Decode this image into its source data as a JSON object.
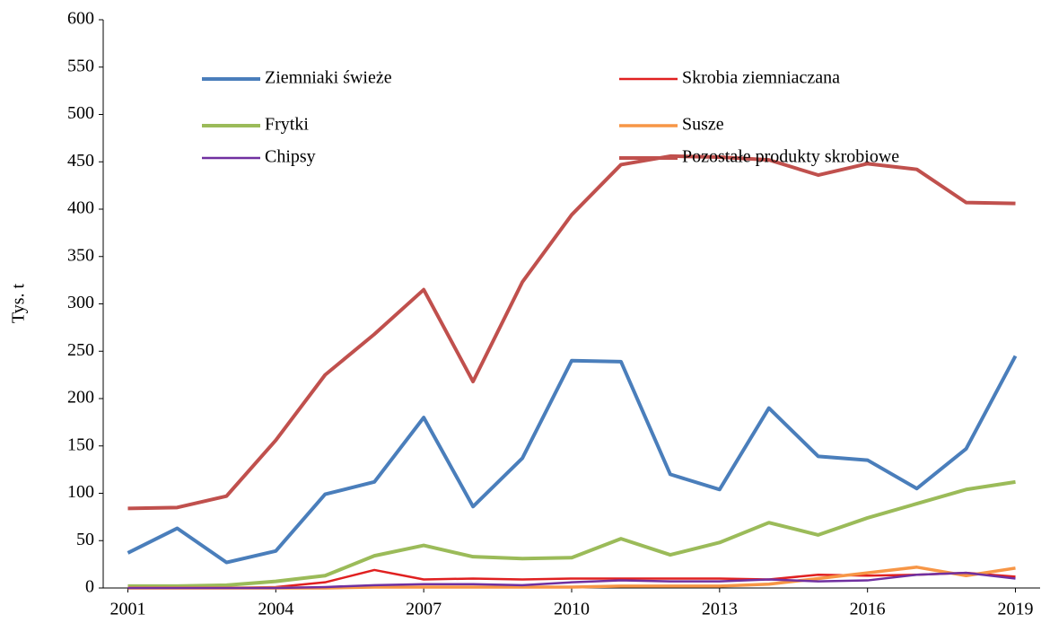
{
  "chart_data": {
    "type": "line",
    "y_label": "Tys. t",
    "x": [
      2001,
      2002,
      2003,
      2004,
      2005,
      2006,
      2007,
      2008,
      2009,
      2010,
      2011,
      2012,
      2013,
      2014,
      2015,
      2016,
      2017,
      2018,
      2019
    ],
    "xlim": [
      2000.5,
      2019.5
    ],
    "xticks": [
      2001,
      2004,
      2007,
      2010,
      2013,
      2016,
      2019
    ],
    "ylim": [
      0,
      600
    ],
    "yticks": [
      0,
      50,
      100,
      150,
      200,
      250,
      300,
      350,
      400,
      450,
      500,
      550,
      600
    ],
    "grid": false,
    "legend": "top",
    "series": [
      {
        "name": "Ziemniaki świeże",
        "color": "#4a7ebb",
        "values": [
          37,
          63,
          27,
          39,
          99,
          112,
          180,
          86,
          137,
          240,
          239,
          120,
          104,
          190,
          139,
          135,
          105,
          147,
          245
        ]
      },
      {
        "name": "Skrobia ziemniaczana",
        "color": "#e02020",
        "values": [
          0,
          0,
          0,
          1,
          6,
          19,
          9,
          10,
          9,
          10,
          10,
          10,
          10,
          9,
          14,
          13,
          14,
          16,
          12
        ]
      },
      {
        "name": "Frytki",
        "color": "#9bbb59",
        "values": [
          2,
          2,
          3,
          7,
          13,
          34,
          45,
          33,
          31,
          32,
          52,
          35,
          48,
          69,
          56,
          74,
          89,
          104,
          112
        ]
      },
      {
        "name": "Susze",
        "color": "#f79646",
        "values": [
          0,
          0,
          0,
          0,
          0,
          1,
          1,
          1,
          1,
          1,
          2,
          2,
          2,
          4,
          10,
          16,
          22,
          13,
          21
        ]
      },
      {
        "name": "Chipsy",
        "color": "#7030a0",
        "values": [
          0,
          0,
          0,
          0,
          1,
          3,
          4,
          4,
          3,
          6,
          8,
          7,
          7,
          9,
          7,
          8,
          14,
          16,
          10
        ]
      },
      {
        "name": "Pozostałe produkty skrobiowe",
        "color": "#c0504d",
        "values": [
          84,
          85,
          97,
          156,
          225,
          268,
          315,
          218,
          323,
          394,
          447,
          456,
          455,
          452,
          436,
          448,
          442,
          407,
          406
        ]
      }
    ]
  }
}
